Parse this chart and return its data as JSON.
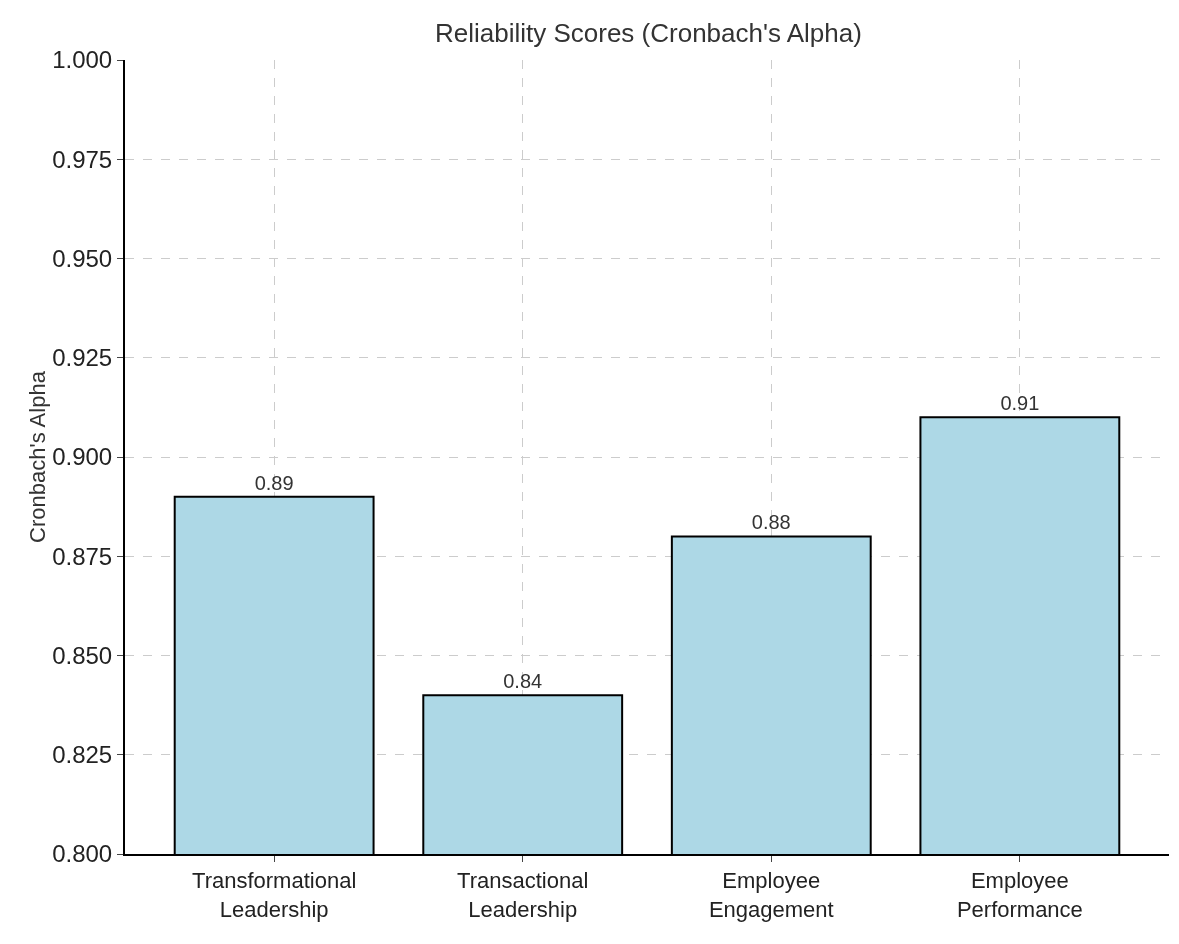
{
  "chart_data": {
    "type": "bar",
    "title": "Reliability Scores (Cronbach's Alpha)",
    "ylabel": "Cronbach's Alpha",
    "categories": [
      "Transformational Leadership",
      "Transactional Leadership",
      "Employee Engagement",
      "Employee Performance"
    ],
    "values": [
      0.89,
      0.84,
      0.88,
      0.91
    ],
    "color": "#add8e6",
    "ylim": [
      0.8,
      1.0
    ],
    "yticks": [
      {
        "value": 0.8,
        "label": "0.800"
      },
      {
        "value": 0.825,
        "label": "0.825"
      },
      {
        "value": 0.85,
        "label": "0.850"
      },
      {
        "value": 0.875,
        "label": "0.875"
      },
      {
        "value": 0.9,
        "label": "0.900"
      },
      {
        "value": 0.925,
        "label": "0.925"
      },
      {
        "value": 0.95,
        "label": "0.950"
      },
      {
        "value": 0.975,
        "label": "0.975"
      },
      {
        "value": 1.0,
        "label": "1.000"
      }
    ],
    "data_labels": true,
    "grid": true
  }
}
